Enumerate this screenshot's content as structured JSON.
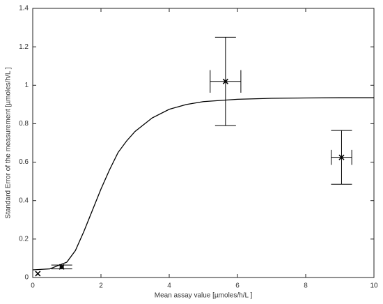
{
  "chart_data": {
    "type": "scatter",
    "xlabel": "Mean assay value [µmoles/h/L ]",
    "ylabel": "Standard Error of the measurement  [µmoles/h/L ]",
    "xlim": [
      0,
      10
    ],
    "ylim": [
      0,
      1.4
    ],
    "xticks": [
      0,
      2,
      4,
      6,
      8,
      10
    ],
    "yticks": [
      0,
      0.2,
      0.4,
      0.6,
      0.8,
      1,
      1.2,
      1.4
    ],
    "grid": false,
    "color": "#000000",
    "curve": {
      "x": [
        0,
        0.5,
        1,
        1.25,
        1.5,
        1.75,
        2,
        2.25,
        2.5,
        2.75,
        3,
        3.5,
        4,
        4.5,
        5,
        6,
        7,
        8,
        9,
        10
      ],
      "y": [
        0.04,
        0.045,
        0.08,
        0.14,
        0.24,
        0.35,
        0.46,
        0.56,
        0.65,
        0.71,
        0.76,
        0.83,
        0.875,
        0.9,
        0.915,
        0.927,
        0.932,
        0.934,
        0.935,
        0.935
      ]
    },
    "points": {
      "x": [
        0.15,
        0.85,
        5.65,
        9.05
      ],
      "y": [
        0.02,
        0.055,
        1.02,
        0.625
      ],
      "x_err": [
        null,
        0.05,
        0.45,
        0.3
      ],
      "y_err": [
        null,
        0.01,
        0.23,
        0.14
      ]
    }
  }
}
